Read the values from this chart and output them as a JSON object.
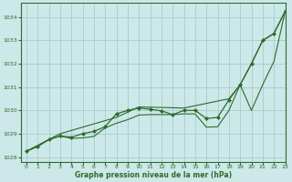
{
  "title": "Graphe pression niveau de la mer (hPa)",
  "background_color": "#cce8e8",
  "grid_color": "#aacccc",
  "line_color": "#2d6b2d",
  "xlim": [
    -0.5,
    23
  ],
  "ylim": [
    1027.8,
    1034.6
  ],
  "yticks": [
    1028,
    1029,
    1030,
    1031,
    1032,
    1033,
    1034
  ],
  "xticks": [
    0,
    1,
    2,
    3,
    4,
    5,
    6,
    7,
    8,
    9,
    10,
    11,
    12,
    13,
    14,
    15,
    16,
    17,
    18,
    19,
    20,
    21,
    22,
    23
  ],
  "series_main_x": [
    0,
    1,
    2,
    3,
    4,
    5,
    6,
    7,
    8,
    9,
    10,
    11,
    12,
    13,
    14,
    15,
    16,
    17,
    18,
    19,
    20,
    21,
    22,
    23
  ],
  "series_main_y": [
    1028.25,
    1028.45,
    1028.75,
    1028.9,
    1028.85,
    1029.0,
    1029.1,
    1029.3,
    1029.85,
    1030.0,
    1030.1,
    1030.05,
    1029.98,
    1029.82,
    1030.0,
    1030.0,
    1029.65,
    1029.7,
    1030.45,
    1031.1,
    1032.0,
    1033.0,
    1033.3,
    1034.25
  ],
  "series_upper_x": [
    0,
    3,
    8,
    10,
    14,
    18,
    19,
    20,
    21,
    22,
    23
  ],
  "series_upper_y": [
    1028.25,
    1029.0,
    1029.7,
    1030.15,
    1030.1,
    1030.5,
    1031.1,
    1032.0,
    1033.0,
    1033.3,
    1034.25
  ],
  "series_lower_x": [
    0,
    1,
    2,
    3,
    4,
    5,
    6,
    7,
    8,
    9,
    10,
    11,
    12,
    13,
    14,
    15,
    16,
    17,
    18,
    19,
    20,
    21,
    22,
    23
  ],
  "series_lower_y": [
    1028.25,
    1028.45,
    1028.75,
    1028.9,
    1028.8,
    1028.82,
    1028.88,
    1029.25,
    1029.45,
    1029.6,
    1029.8,
    1029.82,
    1029.82,
    1029.82,
    1029.85,
    1029.85,
    1029.28,
    1029.3,
    1030.0,
    1031.1,
    1030.0,
    1031.1,
    1032.1,
    1034.25
  ],
  "figsize": [
    3.2,
    2.0
  ],
  "dpi": 100
}
